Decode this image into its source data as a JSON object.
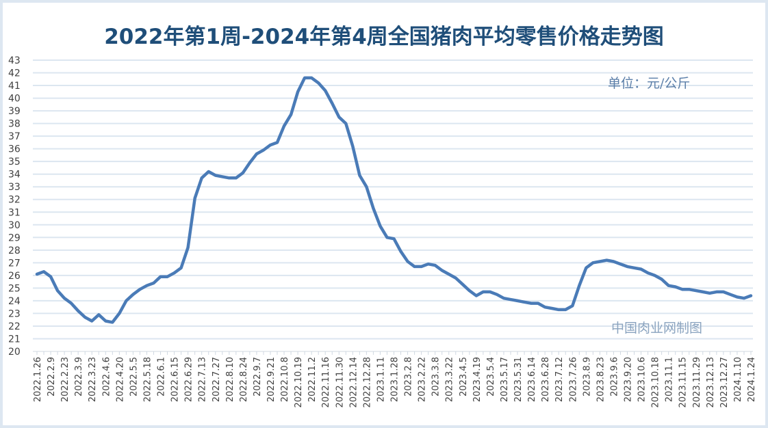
{
  "title": "2022年第1周-2024年第4周全国猪肉平均零售价格走势图",
  "unit_label": "单位：元/公斤",
  "source_label": "中国肉业网制图",
  "colors": {
    "line": "#4a7bb7",
    "grid": "#dce6f0",
    "title": "#1f4e79",
    "background": "#dde7f1"
  },
  "chart_data": {
    "type": "line",
    "title": "2022年第1周-2024年第4周全国猪肉平均零售价格走势图",
    "xlabel": "",
    "ylabel": "元/公斤",
    "ylim": [
      20,
      43
    ],
    "yticks": [
      20,
      21,
      22,
      23,
      24,
      25,
      26,
      27,
      28,
      29,
      30,
      31,
      32,
      33,
      34,
      35,
      36,
      37,
      38,
      39,
      40,
      41,
      42,
      43
    ],
    "grid": true,
    "legend": "none",
    "xtick_labels": [
      "2022.1.26",
      "2022.2.9",
      "2022.2.23",
      "2022.3.9",
      "2022.3.23",
      "2022.4.6",
      "2022.4.20",
      "2022.5.5",
      "2022.5.18",
      "2022.6.1",
      "2022.6.15",
      "2022.6.29",
      "2022.7.13",
      "2022.7.27",
      "2022.8.10",
      "2022.8.24",
      "2022.9.7",
      "2022.9.21",
      "2022.10.8",
      "2022.10.19",
      "2022.11.2",
      "2022.11.16",
      "2022.11.30",
      "2022.12.14",
      "2022.12.28",
      "2023.1.11",
      "2023.1.28",
      "2023.2.8",
      "2023.2.22",
      "2023.3.8",
      "2023.3.22",
      "2023.4.5",
      "2023.4.19",
      "2023.5.4",
      "2023.5.17",
      "2023.5.31",
      "2023.6.14",
      "2023.6.28",
      "2023.7.12",
      "2023.7.26",
      "2023.8.9",
      "2023.8.23",
      "2023.9.6",
      "2023.9.20",
      "2023.10.6",
      "2023.10.18",
      "2023.11.1",
      "2023.11.15",
      "2023.11.29",
      "2023.12.13",
      "2023.12.27",
      "2024.1.10",
      "2024.1.24"
    ],
    "series": [
      {
        "name": "全国猪肉平均零售价格",
        "values": [
          26.1,
          26.3,
          25.9,
          24.8,
          24.2,
          23.8,
          23.2,
          22.7,
          22.4,
          22.9,
          22.4,
          22.3,
          23.0,
          24.0,
          24.5,
          24.9,
          25.2,
          25.4,
          25.9,
          25.9,
          26.2,
          26.6,
          28.2,
          32.1,
          33.7,
          34.2,
          33.9,
          33.8,
          33.7,
          33.7,
          34.1,
          34.9,
          35.6,
          35.9,
          36.3,
          36.5,
          37.8,
          38.7,
          40.5,
          41.6,
          41.6,
          41.2,
          40.6,
          39.6,
          38.5,
          38.0,
          36.2,
          33.9,
          33.0,
          31.3,
          29.9,
          29.0,
          28.9,
          27.9,
          27.1,
          26.7,
          26.7,
          26.9,
          26.8,
          26.4,
          26.1,
          25.8,
          25.3,
          24.8,
          24.4,
          24.7,
          24.7,
          24.5,
          24.2,
          24.1,
          24.0,
          23.9,
          23.8,
          23.8,
          23.5,
          23.4,
          23.3,
          23.3,
          23.6,
          25.2,
          26.6,
          27.0,
          27.1,
          27.2,
          27.1,
          26.9,
          26.7,
          26.6,
          26.5,
          26.2,
          26.0,
          25.7,
          25.2,
          25.1,
          24.9,
          24.9,
          24.8,
          24.7,
          24.6,
          24.7,
          24.7,
          24.5,
          24.3,
          24.2,
          24.4
        ]
      }
    ]
  }
}
